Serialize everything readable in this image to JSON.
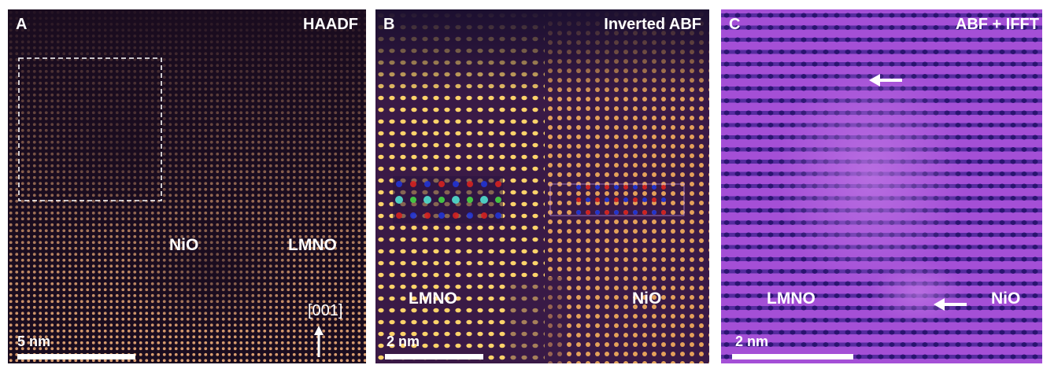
{
  "panels": [
    {
      "letter": "A",
      "mode": "HAADF",
      "labels": [
        "NiO",
        "LMNO"
      ],
      "direction": "[001]",
      "scale": "5 nm"
    },
    {
      "letter": "B",
      "mode": "Inverted ABF",
      "labels": [
        "LMNO",
        "NiO"
      ],
      "scale": "2 nm"
    },
    {
      "letter": "C",
      "mode": "ABF + IFFT",
      "labels": [
        "LMNO",
        "NiO"
      ],
      "scale": "2 nm"
    }
  ],
  "colors": {
    "haadf_bg": "#1a0c1f",
    "haadf_dot": "#f3b07a",
    "abf_bg": "#3a1a46",
    "abf_dot": "#ffd36a",
    "ifft_bg": "#a44fd6",
    "ifft_row": "#3b1f8c",
    "annotation": "#ffffff"
  }
}
